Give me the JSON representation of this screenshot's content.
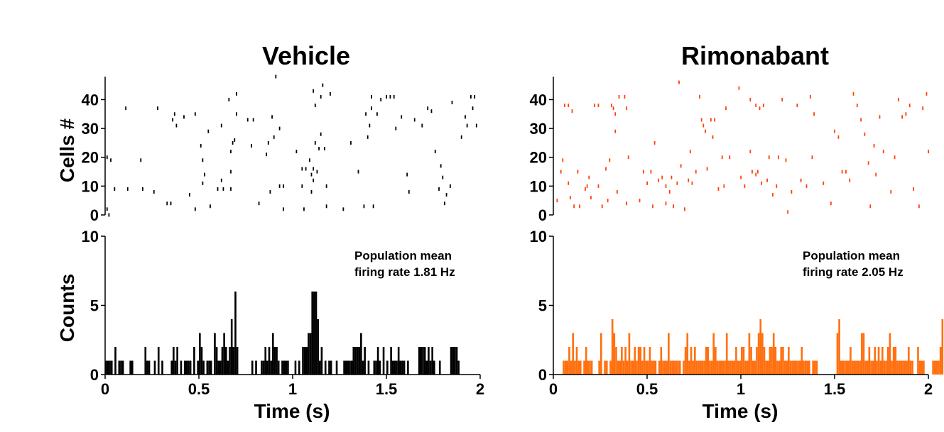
{
  "panels": [
    {
      "title": "Vehicle",
      "color": "#000000",
      "annotation": [
        "Population mean",
        "firing rate 1.81 Hz"
      ]
    },
    {
      "title": "Rimonabant",
      "color_raster": "#ff4000",
      "color_hist": "#ff7010",
      "annotation": [
        "Population mean",
        "firing rate 2.05 Hz"
      ]
    }
  ],
  "chart_data": [
    {
      "type": "scatter",
      "title": "Vehicle",
      "xlabel": "",
      "ylabel": "Cells #",
      "xlim": [
        0,
        2
      ],
      "ylim": [
        0,
        47
      ],
      "yticks": [
        0,
        10,
        20,
        30,
        40
      ],
      "points": [
        [
          0.01,
          2
        ],
        [
          0.01,
          20
        ],
        [
          0.02,
          0
        ],
        [
          0.03,
          19
        ],
        [
          0.05,
          9
        ],
        [
          0.11,
          37
        ],
        [
          0.12,
          9
        ],
        [
          0.19,
          19
        ],
        [
          0.2,
          9
        ],
        [
          0.26,
          8
        ],
        [
          0.28,
          37
        ],
        [
          0.33,
          4
        ],
        [
          0.35,
          4
        ],
        [
          0.36,
          33
        ],
        [
          0.37,
          35
        ],
        [
          0.38,
          31
        ],
        [
          0.42,
          34
        ],
        [
          0.45,
          7
        ],
        [
          0.48,
          2
        ],
        [
          0.48,
          35
        ],
        [
          0.51,
          24
        ],
        [
          0.52,
          11
        ],
        [
          0.52,
          19
        ],
        [
          0.53,
          14
        ],
        [
          0.55,
          29
        ],
        [
          0.56,
          3
        ],
        [
          0.6,
          9
        ],
        [
          0.62,
          31
        ],
        [
          0.62,
          12
        ],
        [
          0.63,
          9
        ],
        [
          0.66,
          40
        ],
        [
          0.67,
          22
        ],
        [
          0.67,
          15
        ],
        [
          0.67,
          9
        ],
        [
          0.68,
          25
        ],
        [
          0.69,
          26
        ],
        [
          0.7,
          35
        ],
        [
          0.7,
          42
        ],
        [
          0.76,
          33
        ],
        [
          0.78,
          24
        ],
        [
          0.79,
          33
        ],
        [
          0.82,
          4
        ],
        [
          0.86,
          21
        ],
        [
          0.87,
          25
        ],
        [
          0.88,
          8
        ],
        [
          0.89,
          34
        ],
        [
          0.9,
          27
        ],
        [
          0.91,
          48
        ],
        [
          0.93,
          10
        ],
        [
          0.93,
          30
        ],
        [
          0.95,
          10
        ],
        [
          0.95,
          2
        ],
        [
          1.02,
          22
        ],
        [
          1.05,
          16
        ],
        [
          1.05,
          10
        ],
        [
          1.06,
          2
        ],
        [
          1.07,
          16
        ],
        [
          1.09,
          19
        ],
        [
          1.1,
          14
        ],
        [
          1.1,
          8
        ],
        [
          1.11,
          43
        ],
        [
          1.11,
          12
        ],
        [
          1.11,
          16
        ],
        [
          1.12,
          38
        ],
        [
          1.12,
          25
        ],
        [
          1.13,
          15
        ],
        [
          1.14,
          23
        ],
        [
          1.15,
          28
        ],
        [
          1.15,
          41
        ],
        [
          1.16,
          45
        ],
        [
          1.17,
          23
        ],
        [
          1.18,
          3
        ],
        [
          1.18,
          10
        ],
        [
          1.2,
          42
        ],
        [
          1.27,
          2
        ],
        [
          1.31,
          25
        ],
        [
          1.35,
          15
        ],
        [
          1.38,
          3
        ],
        [
          1.39,
          35
        ],
        [
          1.4,
          27
        ],
        [
          1.41,
          31
        ],
        [
          1.42,
          37
        ],
        [
          1.42,
          41
        ],
        [
          1.43,
          3
        ],
        [
          1.45,
          35
        ],
        [
          1.47,
          40
        ],
        [
          1.5,
          41
        ],
        [
          1.52,
          41
        ],
        [
          1.54,
          41
        ],
        [
          1.55,
          30
        ],
        [
          1.58,
          34
        ],
        [
          1.61,
          14
        ],
        [
          1.62,
          8
        ],
        [
          1.65,
          33
        ],
        [
          1.69,
          31
        ],
        [
          1.72,
          37
        ],
        [
          1.74,
          36
        ],
        [
          1.76,
          22
        ],
        [
          1.78,
          9
        ],
        [
          1.79,
          17
        ],
        [
          1.8,
          13
        ],
        [
          1.81,
          4
        ],
        [
          1.82,
          7
        ],
        [
          1.84,
          10
        ],
        [
          1.85,
          39
        ],
        [
          1.9,
          27
        ],
        [
          1.92,
          34
        ],
        [
          1.93,
          31
        ],
        [
          1.95,
          41
        ],
        [
          1.96,
          37
        ],
        [
          1.97,
          41
        ],
        [
          1.98,
          31
        ]
      ]
    },
    {
      "type": "bar",
      "title": "",
      "xlabel": "Time (s)",
      "ylabel": "Counts",
      "xlim": [
        0,
        2
      ],
      "ylim": [
        0,
        10
      ],
      "bin_width": 0.01,
      "xticks": [
        0,
        0.5,
        1,
        1.5,
        2
      ],
      "xtick_labels": [
        "0",
        "0.5",
        "1",
        "1.5",
        "2"
      ],
      "yticks": [
        0,
        5,
        10
      ],
      "counts": [
        1,
        1,
        1,
        1,
        0,
        2,
        0,
        1,
        1,
        1,
        0,
        0,
        0,
        1,
        1,
        0,
        0,
        0,
        0,
        0,
        0,
        2,
        1,
        1,
        0,
        0,
        1,
        0,
        2,
        0,
        1,
        0,
        0,
        0,
        0,
        1,
        2,
        1,
        2,
        0,
        1,
        0,
        1,
        1,
        1,
        1,
        0,
        2,
        0,
        1,
        3,
        2,
        1,
        0,
        1,
        1,
        1,
        0,
        3,
        2,
        1,
        1,
        2,
        3,
        2,
        1,
        2,
        4,
        2,
        6,
        2,
        0,
        0,
        0,
        0,
        0,
        0,
        0,
        1,
        0,
        1,
        0,
        0,
        1,
        1,
        2,
        1,
        2,
        1,
        3,
        2,
        2,
        1,
        0,
        1,
        1,
        1,
        1,
        0,
        0,
        0,
        1,
        0,
        1,
        0,
        2,
        2,
        2,
        3,
        3,
        6,
        6,
        6,
        4,
        1,
        2,
        0,
        1,
        0,
        1,
        1,
        0,
        0,
        1,
        0,
        0,
        0,
        1,
        1,
        1,
        1,
        1,
        2,
        2,
        2,
        2,
        3,
        1,
        2,
        0,
        1,
        0,
        0,
        1,
        1,
        2,
        1,
        0,
        2,
        0,
        1,
        0,
        2,
        1,
        1,
        1,
        2,
        1,
        1,
        1,
        0,
        1,
        0,
        0,
        0,
        0,
        0,
        2,
        2,
        2,
        2,
        1,
        2,
        1,
        2,
        1,
        0,
        0,
        1,
        0,
        0,
        0,
        0,
        0,
        2,
        2,
        2,
        2,
        1,
        0,
        0,
        0,
        0,
        0,
        0,
        0,
        0,
        0,
        0,
        0,
        0,
        0
      ]
    },
    {
      "type": "scatter",
      "title": "Rimonabant",
      "xlabel": "",
      "ylabel": "",
      "xlim": [
        0,
        2
      ],
      "ylim": [
        0,
        47
      ],
      "yticks": [
        0,
        10,
        20,
        30,
        40
      ],
      "points": [
        [
          0.02,
          5
        ],
        [
          0.04,
          15
        ],
        [
          0.05,
          19
        ],
        [
          0.06,
          38
        ],
        [
          0.08,
          11
        ],
        [
          0.08,
          38
        ],
        [
          0.09,
          6
        ],
        [
          0.1,
          36
        ],
        [
          0.11,
          3
        ],
        [
          0.13,
          15
        ],
        [
          0.14,
          3
        ],
        [
          0.17,
          9
        ],
        [
          0.18,
          10
        ],
        [
          0.19,
          13
        ],
        [
          0.2,
          6
        ],
        [
          0.22,
          38
        ],
        [
          0.24,
          10
        ],
        [
          0.24,
          38
        ],
        [
          0.26,
          3
        ],
        [
          0.28,
          16
        ],
        [
          0.29,
          5
        ],
        [
          0.3,
          19
        ],
        [
          0.31,
          38
        ],
        [
          0.32,
          37
        ],
        [
          0.33,
          35
        ],
        [
          0.33,
          29
        ],
        [
          0.34,
          8
        ],
        [
          0.35,
          41
        ],
        [
          0.38,
          41
        ],
        [
          0.39,
          4
        ],
        [
          0.39,
          37
        ],
        [
          0.4,
          20
        ],
        [
          0.46,
          5
        ],
        [
          0.48,
          15
        ],
        [
          0.5,
          11
        ],
        [
          0.52,
          15
        ],
        [
          0.53,
          3
        ],
        [
          0.54,
          25
        ],
        [
          0.56,
          12
        ],
        [
          0.58,
          13
        ],
        [
          0.6,
          4
        ],
        [
          0.6,
          10
        ],
        [
          0.62,
          8
        ],
        [
          0.63,
          13
        ],
        [
          0.64,
          3
        ],
        [
          0.66,
          11
        ],
        [
          0.67,
          46
        ],
        [
          0.68,
          17
        ],
        [
          0.7,
          2
        ],
        [
          0.72,
          12
        ],
        [
          0.73,
          22
        ],
        [
          0.74,
          11
        ],
        [
          0.76,
          15
        ],
        [
          0.78,
          41
        ],
        [
          0.79,
          33
        ],
        [
          0.8,
          31
        ],
        [
          0.81,
          29
        ],
        [
          0.82,
          16
        ],
        [
          0.84,
          33
        ],
        [
          0.85,
          27
        ],
        [
          0.86,
          33
        ],
        [
          0.88,
          9
        ],
        [
          0.9,
          20
        ],
        [
          0.91,
          10
        ],
        [
          0.92,
          37
        ],
        [
          0.94,
          20
        ],
        [
          0.99,
          44
        ],
        [
          1.0,
          13
        ],
        [
          1.02,
          10
        ],
        [
          1.05,
          22
        ],
        [
          1.05,
          40
        ],
        [
          1.06,
          15
        ],
        [
          1.08,
          14
        ],
        [
          1.08,
          38
        ],
        [
          1.09,
          15
        ],
        [
          1.1,
          37
        ],
        [
          1.11,
          11
        ],
        [
          1.12,
          38
        ],
        [
          1.14,
          12
        ],
        [
          1.15,
          20
        ],
        [
          1.17,
          7
        ],
        [
          1.19,
          10
        ],
        [
          1.2,
          20
        ],
        [
          1.22,
          40
        ],
        [
          1.24,
          19
        ],
        [
          1.25,
          1
        ],
        [
          1.27,
          8
        ],
        [
          1.3,
          38
        ],
        [
          1.32,
          12
        ],
        [
          1.35,
          10
        ],
        [
          1.37,
          41
        ],
        [
          1.38,
          20
        ],
        [
          1.39,
          35
        ],
        [
          1.44,
          11
        ],
        [
          1.48,
          4
        ],
        [
          1.5,
          29
        ],
        [
          1.52,
          27
        ],
        [
          1.54,
          15
        ],
        [
          1.56,
          15
        ],
        [
          1.58,
          12
        ],
        [
          1.6,
          42
        ],
        [
          1.62,
          38
        ],
        [
          1.64,
          33
        ],
        [
          1.66,
          28
        ],
        [
          1.68,
          18
        ],
        [
          1.69,
          3
        ],
        [
          1.71,
          24
        ],
        [
          1.72,
          14
        ],
        [
          1.74,
          34
        ],
        [
          1.76,
          22
        ],
        [
          1.8,
          8
        ],
        [
          1.82,
          20
        ],
        [
          1.84,
          40
        ],
        [
          1.86,
          34
        ],
        [
          1.88,
          35
        ],
        [
          1.9,
          38
        ],
        [
          1.92,
          9
        ],
        [
          1.95,
          3
        ],
        [
          1.97,
          37
        ],
        [
          1.99,
          42
        ],
        [
          2.0,
          22
        ]
      ]
    },
    {
      "type": "bar",
      "title": "",
      "xlabel": "Time (s)",
      "ylabel": "",
      "xlim": [
        0,
        2
      ],
      "ylim": [
        0,
        10
      ],
      "bin_width": 0.01,
      "xticks": [
        0,
        0.5,
        1,
        1.5,
        2
      ],
      "xtick_labels": [
        "0",
        "0.5",
        "1",
        "1.5",
        "2"
      ],
      "yticks": [
        0,
        5,
        10
      ],
      "counts": [
        0,
        0,
        0,
        0,
        0,
        1,
        1,
        1,
        2,
        1,
        3,
        1,
        2,
        1,
        1,
        0,
        1,
        2,
        1,
        1,
        1,
        0,
        0,
        0,
        1,
        3,
        0,
        1,
        1,
        0,
        1,
        4,
        3,
        2,
        1,
        1,
        2,
        1,
        2,
        1,
        3,
        1,
        1,
        2,
        1,
        2,
        2,
        1,
        2,
        1,
        1,
        2,
        1,
        1,
        1,
        0,
        1,
        2,
        1,
        1,
        1,
        3,
        1,
        1,
        1,
        1,
        1,
        1,
        0,
        1,
        2,
        3,
        1,
        2,
        1,
        2,
        1,
        1,
        1,
        1,
        1,
        2,
        2,
        1,
        1,
        3,
        2,
        1,
        1,
        1,
        1,
        1,
        3,
        1,
        1,
        1,
        1,
        2,
        1,
        1,
        2,
        2,
        1,
        1,
        3,
        2,
        1,
        1,
        2,
        3,
        4,
        3,
        2,
        1,
        1,
        2,
        2,
        3,
        2,
        1,
        1,
        2,
        2,
        1,
        1,
        2,
        1,
        1,
        1,
        1,
        1,
        1,
        2,
        1,
        1,
        1,
        1,
        0,
        1,
        1,
        1,
        0,
        0,
        0,
        0,
        0,
        0,
        0,
        0,
        0,
        0,
        3,
        4,
        1,
        1,
        1,
        1,
        1,
        2,
        1,
        1,
        1,
        1,
        1,
        3,
        3,
        1,
        1,
        2,
        1,
        1,
        2,
        1,
        2,
        1,
        2,
        1,
        1,
        2,
        3,
        1,
        2,
        2,
        1,
        1,
        1,
        1,
        1,
        1,
        2,
        1,
        1,
        0,
        0,
        2,
        1,
        1,
        1,
        0,
        0,
        0,
        0,
        1,
        1,
        1,
        1,
        2,
        4
      ]
    }
  ]
}
